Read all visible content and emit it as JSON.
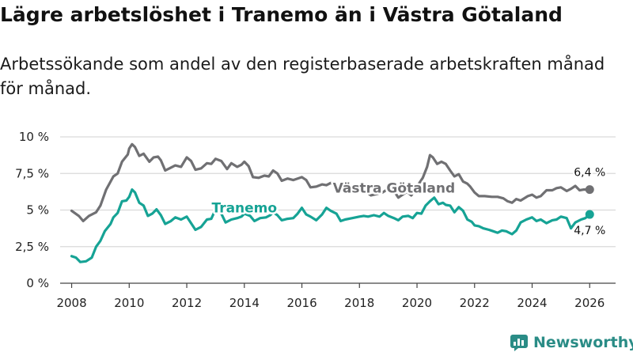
{
  "title": "Lägre arbetslöshet i Tranemo än i Västra Götaland",
  "subtitle": "Arbetssökande som andel av den registerbaserade arbetskraften månad för månad.",
  "brand": "Newsworthy",
  "colors": {
    "tranemo": "#16a395",
    "vastra": "#707073",
    "grid": "#d9d9d9",
    "axis": "#444444"
  },
  "chart_data": {
    "type": "line",
    "title": "Lägre arbetslöshet i Tranemo än i Västra Götaland",
    "xlabel": "",
    "ylabel": "",
    "xlim": [
      2007.6,
      2026.9
    ],
    "ylim": [
      0,
      10
    ],
    "x_ticks": [
      2008,
      2010,
      2012,
      2014,
      2016,
      2018,
      2020,
      2022,
      2024,
      2026
    ],
    "x_tick_labels": [
      "2008",
      "2010",
      "2012",
      "2014",
      "2016",
      "2018",
      "2020",
      "2022",
      "2024",
      "2026"
    ],
    "y_ticks": [
      0,
      2.5,
      5,
      7.5,
      10
    ],
    "y_tick_labels": [
      "0 %",
      "2,5 %",
      "5 %",
      "7,5 %",
      "10 %"
    ],
    "grid": true,
    "series": [
      {
        "name": "Västra Götaland",
        "color": "#707073",
        "end_label": "6,4 %",
        "points": [
          [
            2008.0,
            4.95
          ],
          [
            2008.25,
            4.6
          ],
          [
            2008.4,
            4.25
          ],
          [
            2008.6,
            4.6
          ],
          [
            2008.85,
            4.85
          ],
          [
            2009.0,
            5.3
          ],
          [
            2009.2,
            6.4
          ],
          [
            2009.45,
            7.3
          ],
          [
            2009.6,
            7.5
          ],
          [
            2009.75,
            8.3
          ],
          [
            2009.95,
            8.8
          ],
          [
            2010.0,
            9.2
          ],
          [
            2010.1,
            9.5
          ],
          [
            2010.2,
            9.3
          ],
          [
            2010.35,
            8.7
          ],
          [
            2010.5,
            8.85
          ],
          [
            2010.7,
            8.3
          ],
          [
            2010.85,
            8.6
          ],
          [
            2011.0,
            8.65
          ],
          [
            2011.1,
            8.4
          ],
          [
            2011.25,
            7.7
          ],
          [
            2011.4,
            7.85
          ],
          [
            2011.6,
            8.05
          ],
          [
            2011.8,
            7.95
          ],
          [
            2012.0,
            8.6
          ],
          [
            2012.15,
            8.35
          ],
          [
            2012.3,
            7.75
          ],
          [
            2012.5,
            7.85
          ],
          [
            2012.7,
            8.2
          ],
          [
            2012.85,
            8.15
          ],
          [
            2013.0,
            8.5
          ],
          [
            2013.2,
            8.35
          ],
          [
            2013.4,
            7.8
          ],
          [
            2013.55,
            8.2
          ],
          [
            2013.75,
            7.95
          ],
          [
            2013.9,
            8.1
          ],
          [
            2014.0,
            8.3
          ],
          [
            2014.15,
            8.0
          ],
          [
            2014.3,
            7.25
          ],
          [
            2014.5,
            7.2
          ],
          [
            2014.7,
            7.35
          ],
          [
            2014.85,
            7.3
          ],
          [
            2015.0,
            7.7
          ],
          [
            2015.15,
            7.5
          ],
          [
            2015.3,
            7.0
          ],
          [
            2015.5,
            7.15
          ],
          [
            2015.7,
            7.05
          ],
          [
            2015.85,
            7.15
          ],
          [
            2016.0,
            7.25
          ],
          [
            2016.15,
            7.05
          ],
          [
            2016.3,
            6.55
          ],
          [
            2016.5,
            6.6
          ],
          [
            2016.7,
            6.75
          ],
          [
            2016.85,
            6.7
          ],
          [
            2017.0,
            6.85
          ],
          [
            2017.2,
            6.7
          ],
          [
            2017.35,
            6.3
          ],
          [
            2017.5,
            6.45
          ],
          [
            2017.75,
            6.5
          ],
          [
            2018.0,
            6.4
          ],
          [
            2018.2,
            6.3
          ],
          [
            2018.4,
            6.0
          ],
          [
            2018.6,
            6.1
          ],
          [
            2018.8,
            6.2
          ],
          [
            2019.0,
            6.45
          ],
          [
            2019.2,
            6.3
          ],
          [
            2019.35,
            5.85
          ],
          [
            2019.5,
            6.05
          ],
          [
            2019.65,
            6.25
          ],
          [
            2019.8,
            6.0
          ],
          [
            2020.0,
            6.6
          ],
          [
            2020.2,
            7.2
          ],
          [
            2020.35,
            7.95
          ],
          [
            2020.45,
            8.75
          ],
          [
            2020.55,
            8.6
          ],
          [
            2020.7,
            8.15
          ],
          [
            2020.85,
            8.3
          ],
          [
            2021.0,
            8.15
          ],
          [
            2021.15,
            7.7
          ],
          [
            2021.3,
            7.3
          ],
          [
            2021.45,
            7.45
          ],
          [
            2021.6,
            6.95
          ],
          [
            2021.75,
            6.8
          ],
          [
            2021.85,
            6.6
          ],
          [
            2022.0,
            6.2
          ],
          [
            2022.15,
            5.95
          ],
          [
            2022.35,
            5.95
          ],
          [
            2022.6,
            5.9
          ],
          [
            2022.8,
            5.9
          ],
          [
            2023.0,
            5.8
          ],
          [
            2023.15,
            5.6
          ],
          [
            2023.3,
            5.5
          ],
          [
            2023.45,
            5.75
          ],
          [
            2023.6,
            5.65
          ],
          [
            2023.85,
            5.95
          ],
          [
            2024.0,
            6.05
          ],
          [
            2024.15,
            5.85
          ],
          [
            2024.3,
            5.95
          ],
          [
            2024.5,
            6.35
          ],
          [
            2024.7,
            6.35
          ],
          [
            2024.85,
            6.5
          ],
          [
            2025.0,
            6.55
          ],
          [
            2025.2,
            6.3
          ],
          [
            2025.35,
            6.45
          ],
          [
            2025.5,
            6.65
          ],
          [
            2025.65,
            6.35
          ],
          [
            2025.8,
            6.4
          ],
          [
            2026.0,
            6.4
          ]
        ]
      },
      {
        "name": "Tranemo",
        "color": "#16a395",
        "end_label": "4,7 %",
        "points": [
          [
            2008.0,
            1.85
          ],
          [
            2008.15,
            1.75
          ],
          [
            2008.3,
            1.45
          ],
          [
            2008.5,
            1.5
          ],
          [
            2008.7,
            1.75
          ],
          [
            2008.85,
            2.5
          ],
          [
            2009.0,
            2.9
          ],
          [
            2009.15,
            3.55
          ],
          [
            2009.35,
            4.05
          ],
          [
            2009.45,
            4.5
          ],
          [
            2009.6,
            4.8
          ],
          [
            2009.75,
            5.6
          ],
          [
            2009.9,
            5.65
          ],
          [
            2010.0,
            5.9
          ],
          [
            2010.1,
            6.4
          ],
          [
            2010.2,
            6.2
          ],
          [
            2010.35,
            5.5
          ],
          [
            2010.5,
            5.3
          ],
          [
            2010.65,
            4.6
          ],
          [
            2010.8,
            4.75
          ],
          [
            2010.95,
            5.05
          ],
          [
            2011.1,
            4.65
          ],
          [
            2011.25,
            4.05
          ],
          [
            2011.45,
            4.25
          ],
          [
            2011.6,
            4.5
          ],
          [
            2011.8,
            4.35
          ],
          [
            2012.0,
            4.55
          ],
          [
            2012.15,
            4.1
          ],
          [
            2012.3,
            3.65
          ],
          [
            2012.5,
            3.85
          ],
          [
            2012.7,
            4.35
          ],
          [
            2012.85,
            4.4
          ],
          [
            2013.0,
            5.05
          ],
          [
            2013.2,
            4.75
          ],
          [
            2013.35,
            4.15
          ],
          [
            2013.55,
            4.35
          ],
          [
            2013.75,
            4.45
          ],
          [
            2013.9,
            4.55
          ],
          [
            2014.0,
            4.75
          ],
          [
            2014.2,
            4.6
          ],
          [
            2014.35,
            4.25
          ],
          [
            2014.55,
            4.45
          ],
          [
            2014.75,
            4.5
          ],
          [
            2014.9,
            4.65
          ],
          [
            2015.0,
            4.85
          ],
          [
            2015.15,
            4.65
          ],
          [
            2015.3,
            4.3
          ],
          [
            2015.5,
            4.4
          ],
          [
            2015.7,
            4.45
          ],
          [
            2015.85,
            4.75
          ],
          [
            2016.0,
            5.15
          ],
          [
            2016.15,
            4.7
          ],
          [
            2016.3,
            4.55
          ],
          [
            2016.5,
            4.3
          ],
          [
            2016.7,
            4.7
          ],
          [
            2016.85,
            5.15
          ],
          [
            2017.0,
            4.95
          ],
          [
            2017.2,
            4.75
          ],
          [
            2017.35,
            4.25
          ],
          [
            2017.5,
            4.35
          ],
          [
            2017.75,
            4.45
          ],
          [
            2018.0,
            4.55
          ],
          [
            2018.15,
            4.6
          ],
          [
            2018.3,
            4.55
          ],
          [
            2018.5,
            4.65
          ],
          [
            2018.7,
            4.55
          ],
          [
            2018.85,
            4.8
          ],
          [
            2019.0,
            4.6
          ],
          [
            2019.2,
            4.45
          ],
          [
            2019.35,
            4.3
          ],
          [
            2019.5,
            4.55
          ],
          [
            2019.7,
            4.6
          ],
          [
            2019.85,
            4.45
          ],
          [
            2020.0,
            4.8
          ],
          [
            2020.15,
            4.75
          ],
          [
            2020.3,
            5.3
          ],
          [
            2020.45,
            5.6
          ],
          [
            2020.6,
            5.85
          ],
          [
            2020.75,
            5.4
          ],
          [
            2020.9,
            5.5
          ],
          [
            2021.0,
            5.35
          ],
          [
            2021.15,
            5.3
          ],
          [
            2021.3,
            4.85
          ],
          [
            2021.45,
            5.2
          ],
          [
            2021.6,
            4.95
          ],
          [
            2021.75,
            4.35
          ],
          [
            2021.9,
            4.2
          ],
          [
            2022.0,
            3.95
          ],
          [
            2022.15,
            3.9
          ],
          [
            2022.3,
            3.75
          ],
          [
            2022.5,
            3.65
          ],
          [
            2022.65,
            3.55
          ],
          [
            2022.8,
            3.45
          ],
          [
            2022.95,
            3.6
          ],
          [
            2023.1,
            3.55
          ],
          [
            2023.3,
            3.35
          ],
          [
            2023.45,
            3.6
          ],
          [
            2023.6,
            4.15
          ],
          [
            2023.8,
            4.35
          ],
          [
            2024.0,
            4.5
          ],
          [
            2024.15,
            4.25
          ],
          [
            2024.3,
            4.35
          ],
          [
            2024.5,
            4.1
          ],
          [
            2024.7,
            4.3
          ],
          [
            2024.85,
            4.35
          ],
          [
            2025.0,
            4.55
          ],
          [
            2025.2,
            4.45
          ],
          [
            2025.35,
            3.75
          ],
          [
            2025.5,
            4.15
          ],
          [
            2025.7,
            4.35
          ],
          [
            2025.85,
            4.45
          ],
          [
            2026.0,
            4.7
          ]
        ]
      }
    ]
  }
}
